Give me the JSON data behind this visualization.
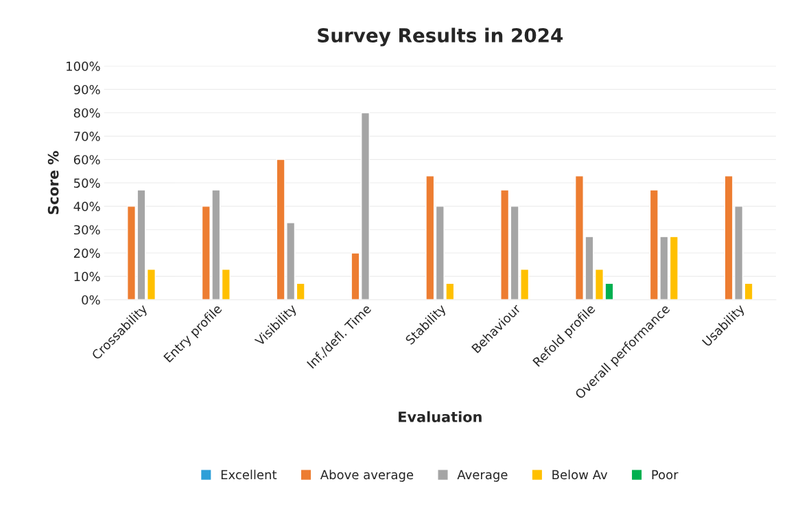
{
  "chart_data": {
    "type": "bar",
    "title": "Survey Results in 2024",
    "xlabel": "Evaluation",
    "ylabel": "Score %",
    "categories": [
      "Crossability",
      "Entry profile",
      "Visibility",
      "Inf./defl. Time",
      "Stability",
      "Behaviour",
      "Refold profile",
      "Overall performance",
      "Usability"
    ],
    "series": [
      {
        "name": "Excellent",
        "color": "#2e9fd8",
        "values": [
          null,
          null,
          null,
          null,
          null,
          null,
          null,
          null,
          null
        ]
      },
      {
        "name": "Above average",
        "color": "#ed7d31",
        "values": [
          40,
          40,
          60,
          20,
          53,
          47,
          53,
          47,
          53
        ]
      },
      {
        "name": "Average",
        "color": "#a5a5a5",
        "values": [
          47,
          47,
          33,
          80,
          40,
          40,
          27,
          27,
          40
        ]
      },
      {
        "name": "Below Av",
        "color": "#ffc000",
        "values": [
          13,
          13,
          7,
          null,
          7,
          13,
          13,
          27,
          7
        ]
      },
      {
        "name": "Poor",
        "color": "#00b050",
        "values": [
          null,
          null,
          null,
          null,
          null,
          null,
          7,
          null,
          null
        ]
      }
    ],
    "ylim": [
      0,
      100
    ],
    "yticks": [
      {
        "value": 0,
        "label": "0%"
      },
      {
        "value": 10,
        "label": "10%"
      },
      {
        "value": 20,
        "label": "20%"
      },
      {
        "value": 30,
        "label": "30%"
      },
      {
        "value": 40,
        "label": "40%"
      },
      {
        "value": 50,
        "label": "50%"
      },
      {
        "value": 60,
        "label": "60%"
      },
      {
        "value": 70,
        "label": "70%"
      },
      {
        "value": 80,
        "label": "80%"
      },
      {
        "value": 90,
        "label": "90%"
      },
      {
        "value": 100,
        "label": "100%"
      }
    ],
    "grid": "y",
    "legend": "bottom"
  }
}
